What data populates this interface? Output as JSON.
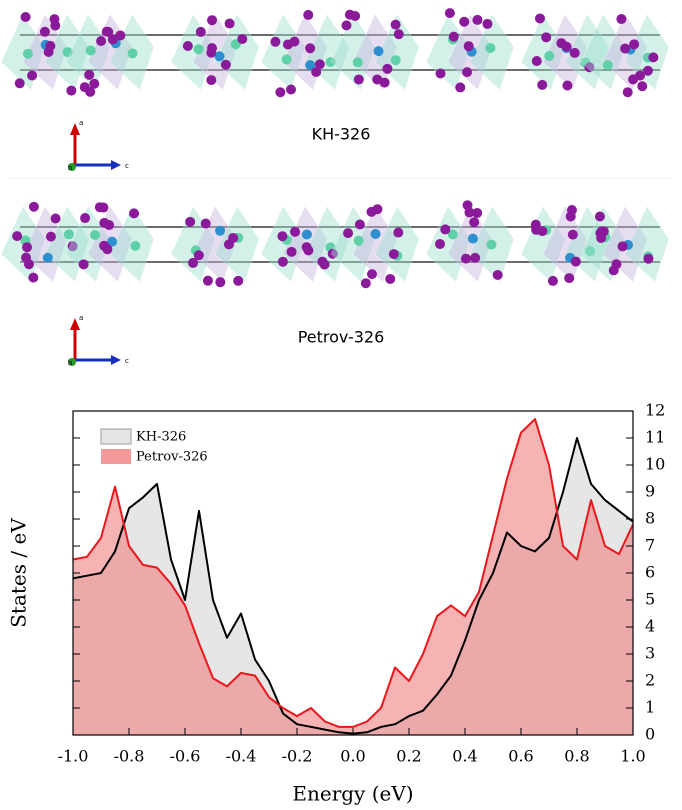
{
  "structures": [
    {
      "label": "KH-326",
      "axes": [
        "a",
        "b",
        "c"
      ]
    },
    {
      "label": "Petrov-326",
      "axes": [
        "a",
        "b",
        "c"
      ]
    }
  ],
  "chart_data": {
    "type": "area",
    "xlabel": "Energy (eV)",
    "ylabel": "States / eV",
    "x": [
      -1.0,
      -0.95,
      -0.9,
      -0.85,
      -0.8,
      -0.75,
      -0.7,
      -0.65,
      -0.6,
      -0.55,
      -0.5,
      -0.45,
      -0.4,
      -0.35,
      -0.3,
      -0.25,
      -0.2,
      -0.15,
      -0.1,
      -0.05,
      0.0,
      0.05,
      0.1,
      0.15,
      0.2,
      0.25,
      0.3,
      0.35,
      0.4,
      0.45,
      0.5,
      0.55,
      0.6,
      0.65,
      0.7,
      0.75,
      0.8,
      0.85,
      0.9,
      0.95,
      1.0
    ],
    "series": [
      {
        "name": "KH-326",
        "color": "#000000",
        "fill": "#e6e6e6",
        "values": [
          5.8,
          5.9,
          6.0,
          6.8,
          8.4,
          8.8,
          9.3,
          6.5,
          5.0,
          8.3,
          5.0,
          3.6,
          4.5,
          2.8,
          2.0,
          0.8,
          0.4,
          0.3,
          0.2,
          0.1,
          0.05,
          0.1,
          0.3,
          0.4,
          0.7,
          0.9,
          1.5,
          2.2,
          3.5,
          5.0,
          6.0,
          7.5,
          7.0,
          6.8,
          7.3,
          9.0,
          11.0,
          9.3,
          8.7,
          8.3,
          7.9
        ]
      },
      {
        "name": "Petrov-326",
        "color": "#e8181c",
        "fill": "#f08080",
        "values": [
          6.5,
          6.6,
          7.3,
          9.2,
          7.0,
          6.3,
          6.2,
          5.6,
          4.8,
          3.4,
          2.1,
          1.8,
          2.3,
          2.2,
          1.4,
          1.0,
          0.7,
          1.0,
          0.5,
          0.3,
          0.3,
          0.5,
          1.0,
          2.5,
          2.0,
          3.0,
          4.4,
          4.8,
          4.4,
          5.3,
          7.4,
          9.5,
          11.2,
          11.7,
          10.0,
          7.0,
          6.5,
          8.7,
          7.0,
          6.7,
          7.8
        ]
      }
    ],
    "xlim": [
      -1.0,
      1.0
    ],
    "xticks": [
      {
        "value": -1.0,
        "label": "-1.0"
      },
      -0.8,
      -0.6,
      -0.4,
      -0.2,
      {
        "value": 0,
        "label": "0.0"
      },
      0.2,
      0.4,
      0.6,
      0.8,
      {
        "value": 1.0,
        "label": "1.0"
      }
    ],
    "ylim": [
      0,
      12
    ],
    "yticks": [
      0,
      1,
      2,
      3,
      4,
      5,
      6,
      7,
      8,
      9,
      10,
      11,
      12
    ],
    "legend": "upper-left"
  }
}
